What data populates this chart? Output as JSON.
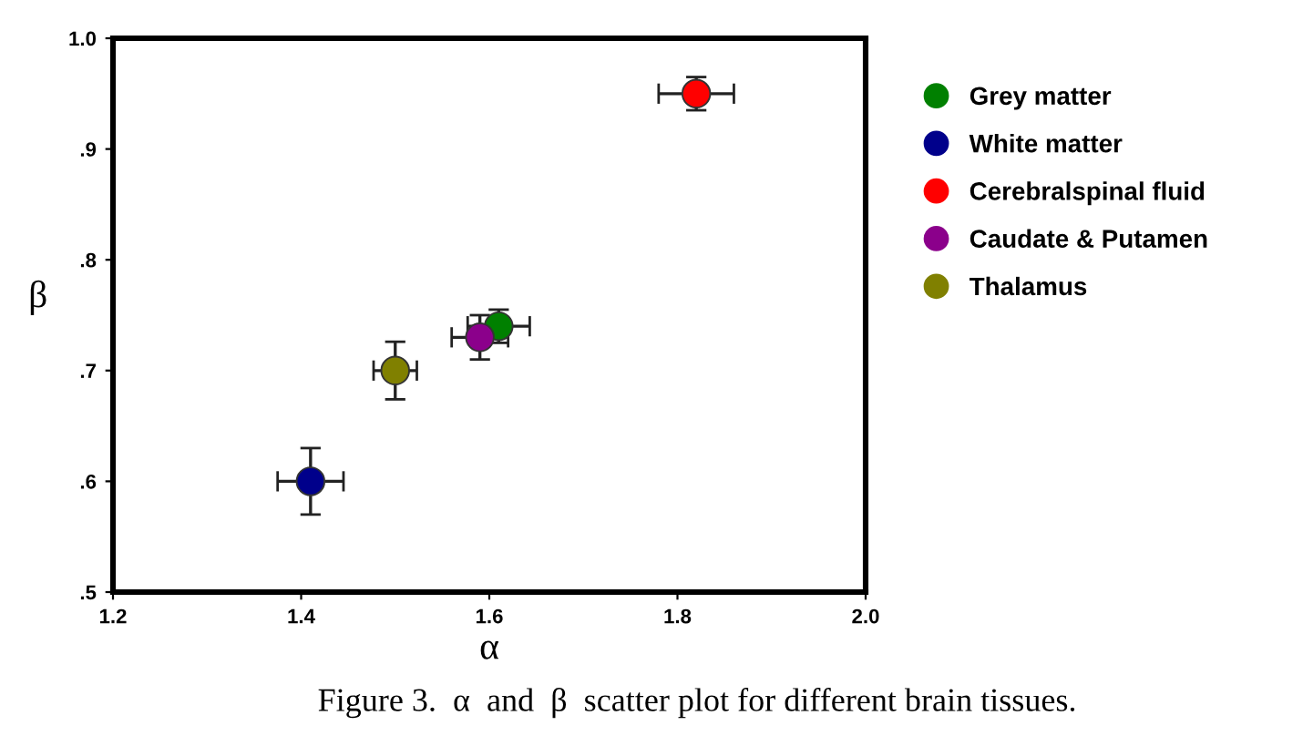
{
  "chart_data": {
    "type": "scatter",
    "xlabel": "α",
    "ylabel": "β",
    "xlim": [
      1.2,
      2.0
    ],
    "xticks": [
      1.2,
      1.4,
      1.6,
      1.8,
      {
        "value": 2.0,
        "label": "2.0"
      }
    ],
    "ylim": [
      0.5,
      1.0
    ],
    "yticks": [
      {
        "value": 0.5,
        "label": ".5"
      },
      {
        "value": 0.6,
        "label": ".6"
      },
      {
        "value": 0.7,
        "label": ".7"
      },
      {
        "value": 0.8,
        "label": ".8"
      },
      {
        "value": 0.9,
        "label": ".9"
      },
      {
        "value": 1.0,
        "label": "1.0"
      }
    ],
    "series": [
      {
        "name": "Grey matter",
        "color": "#008000",
        "x": [
          1.61
        ],
        "values": [
          0.74
        ],
        "errors": [
          0.015
        ],
        "xerrors": [
          0.033
        ]
      },
      {
        "name": "White matter",
        "color": "#00008b",
        "x": [
          1.41
        ],
        "values": [
          0.6
        ],
        "errors": [
          0.03
        ],
        "xerrors": [
          0.035
        ]
      },
      {
        "name": "Cerebralspinal fluid",
        "color": "#ff0000",
        "x": [
          1.82
        ],
        "values": [
          0.95
        ],
        "errors": [
          0.015
        ],
        "xerrors": [
          0.04
        ]
      },
      {
        "name": "Caudate & Putamen",
        "color": "#8b008b",
        "x": [
          1.59
        ],
        "values": [
          0.73
        ],
        "errors": [
          0.02
        ],
        "xerrors": [
          0.03
        ]
      },
      {
        "name": "Thalamus",
        "color": "#808000",
        "x": [
          1.5
        ],
        "values": [
          0.7
        ],
        "errors": [
          0.026
        ],
        "xerrors": [
          0.023
        ]
      }
    ],
    "marker": "circle",
    "grid": false,
    "legend": "right",
    "annotations": [
      "Figure 3.  α  and  β  scatter plot for different brain tissues."
    ]
  }
}
